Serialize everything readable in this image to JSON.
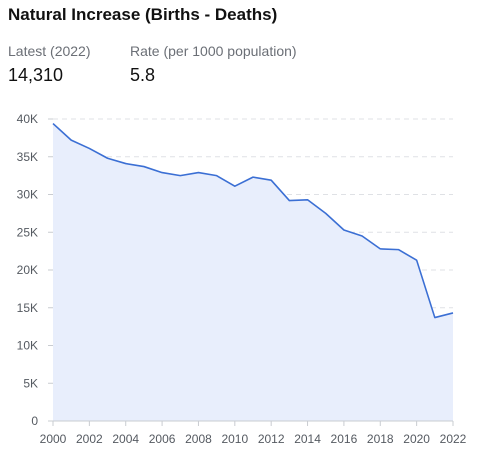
{
  "header": {
    "title": "Natural Increase (Births - Deaths)"
  },
  "stats": [
    {
      "label": "Latest (2022)",
      "value": "14,310"
    },
    {
      "label": "Rate (per 1000 population)",
      "value": "5.8"
    }
  ],
  "chart_data": {
    "type": "area",
    "title": "",
    "xlabel": "",
    "ylabel": "",
    "x": [
      2000,
      2001,
      2002,
      2003,
      2004,
      2005,
      2006,
      2007,
      2008,
      2009,
      2010,
      2011,
      2012,
      2013,
      2014,
      2015,
      2016,
      2017,
      2018,
      2019,
      2020,
      2021,
      2022
    ],
    "values": [
      39400,
      37200,
      36100,
      34800,
      34100,
      33700,
      32900,
      32500,
      32900,
      32500,
      31100,
      32300,
      31900,
      29200,
      29300,
      27500,
      25300,
      24500,
      22800,
      22700,
      21300,
      13700,
      14310
    ],
    "xticks": [
      "2000",
      "2002",
      "2004",
      "2006",
      "2008",
      "2010",
      "2012",
      "2014",
      "2016",
      "2018",
      "2020",
      "2022"
    ],
    "xtick_values": [
      2000,
      2002,
      2004,
      2006,
      2008,
      2010,
      2012,
      2014,
      2016,
      2018,
      2020,
      2022
    ],
    "yticks": [
      "0",
      "5K",
      "10K",
      "15K",
      "20K",
      "25K",
      "30K",
      "35K",
      "40K"
    ],
    "ytick_values": [
      0,
      5000,
      10000,
      15000,
      20000,
      25000,
      30000,
      35000,
      40000
    ],
    "xlim": [
      2000,
      2022
    ],
    "ylim": [
      0,
      40000
    ],
    "grid": "horizontal-dashed",
    "line_color": "#3b6fd4",
    "fill_color": "#e8eefc",
    "grid_color": "#dfe1e5",
    "axis_color": "#c9ccd1"
  }
}
